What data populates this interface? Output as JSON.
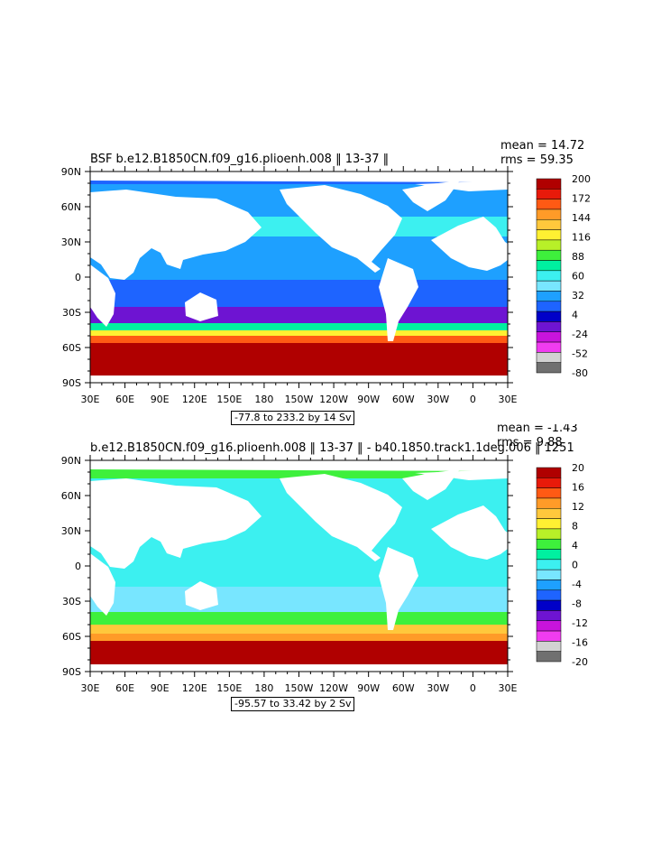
{
  "chart_data": [
    {
      "type": "heatmap",
      "title": "BSF b.e12.B1850CN.f09_g16.plioenh.008 ‖ 13-37 ‖",
      "stats": {
        "mean": "mean = 14.72",
        "rms": "rms = 59.35"
      },
      "x_ticks": [
        "30E",
        "60E",
        "90E",
        "120E",
        "150E",
        "180",
        "150W",
        "120W",
        "90W",
        "60W",
        "30W",
        "0",
        "30E"
      ],
      "y_ticks": [
        "90N",
        "60N",
        "30N",
        "0",
        "30S",
        "60S",
        "90S"
      ],
      "x_range": [
        30,
        390
      ],
      "y_range": [
        -90,
        90
      ],
      "range_label": "-77.8 to 233.2 by 14 Sv",
      "colorbar": {
        "labels": [
          "200",
          "172",
          "144",
          "116",
          "88",
          "60",
          "32",
          "4",
          "-24",
          "-52",
          "-80"
        ],
        "colors": [
          "#b00000",
          "#e81a0a",
          "#ff5a14",
          "#ff9b28",
          "#ffc83c",
          "#fff032",
          "#b8f028",
          "#3ef03c",
          "#00f0a0",
          "#3cf0f0",
          "#78e6ff",
          "#1ea0ff",
          "#1e64ff",
          "#0000c8",
          "#6e14d2",
          "#c814dc",
          "#f03cf0",
          "#d2d2d2",
          "#707070"
        ]
      }
    },
    {
      "type": "heatmap",
      "title": "b.e12.B1850CN.f09_g16.plioenh.008 ‖ 13-37 ‖ - b40.1850.track1.1deg.006 ‖ 1251",
      "stats": {
        "mean": "mean = -1.43",
        "rms": "rms = 9.88"
      },
      "x_ticks": [
        "30E",
        "60E",
        "90E",
        "120E",
        "150E",
        "180",
        "150W",
        "120W",
        "90W",
        "60W",
        "30W",
        "0",
        "30E"
      ],
      "y_ticks": [
        "90N",
        "60N",
        "30N",
        "0",
        "30S",
        "60S",
        "90S"
      ],
      "x_range": [
        30,
        390
      ],
      "y_range": [
        -90,
        90
      ],
      "range_label": "-95.57 to 33.42 by 2 Sv",
      "colorbar": {
        "labels": [
          "20",
          "16",
          "12",
          "8",
          "4",
          "0",
          "-4",
          "-8",
          "-12",
          "-16",
          "-20"
        ],
        "colors": [
          "#b00000",
          "#e81a0a",
          "#ff5a14",
          "#ff9b28",
          "#ffc83c",
          "#fff032",
          "#b8f028",
          "#3ef03c",
          "#00f0a0",
          "#3cf0f0",
          "#78e6ff",
          "#1ea0ff",
          "#1e64ff",
          "#0000c8",
          "#6e14d2",
          "#c814dc",
          "#f03cf0",
          "#d2d2d2",
          "#707070"
        ]
      }
    }
  ]
}
